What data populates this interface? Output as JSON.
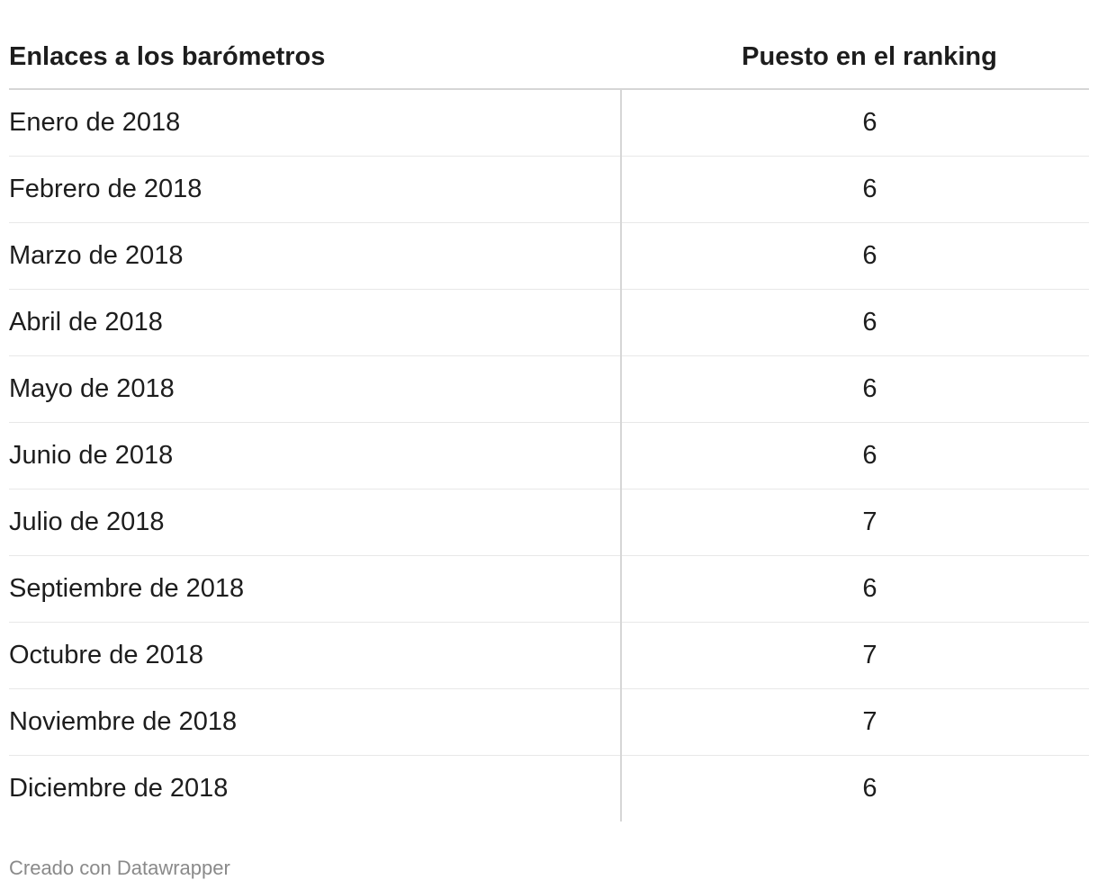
{
  "table": {
    "headers": [
      "Enlaces a los barómetros",
      "Puesto en el ranking"
    ],
    "rows": [
      {
        "month": "Enero de 2018",
        "rank": "6"
      },
      {
        "month": "Febrero de 2018",
        "rank": "6"
      },
      {
        "month": "Marzo de 2018",
        "rank": "6"
      },
      {
        "month": "Abril de 2018",
        "rank": "6"
      },
      {
        "month": "Mayo de 2018",
        "rank": "6"
      },
      {
        "month": "Junio de 2018",
        "rank": "6"
      },
      {
        "month": "Julio de 2018",
        "rank": "7"
      },
      {
        "month": "Septiembre de 2018",
        "rank": "6"
      },
      {
        "month": "Octubre de 2018",
        "rank": "7"
      },
      {
        "month": "Noviembre de 2018",
        "rank": "7"
      },
      {
        "month": "Diciembre de 2018",
        "rank": "6"
      }
    ]
  },
  "footer": {
    "credit": "Creado con Datawrapper"
  }
}
